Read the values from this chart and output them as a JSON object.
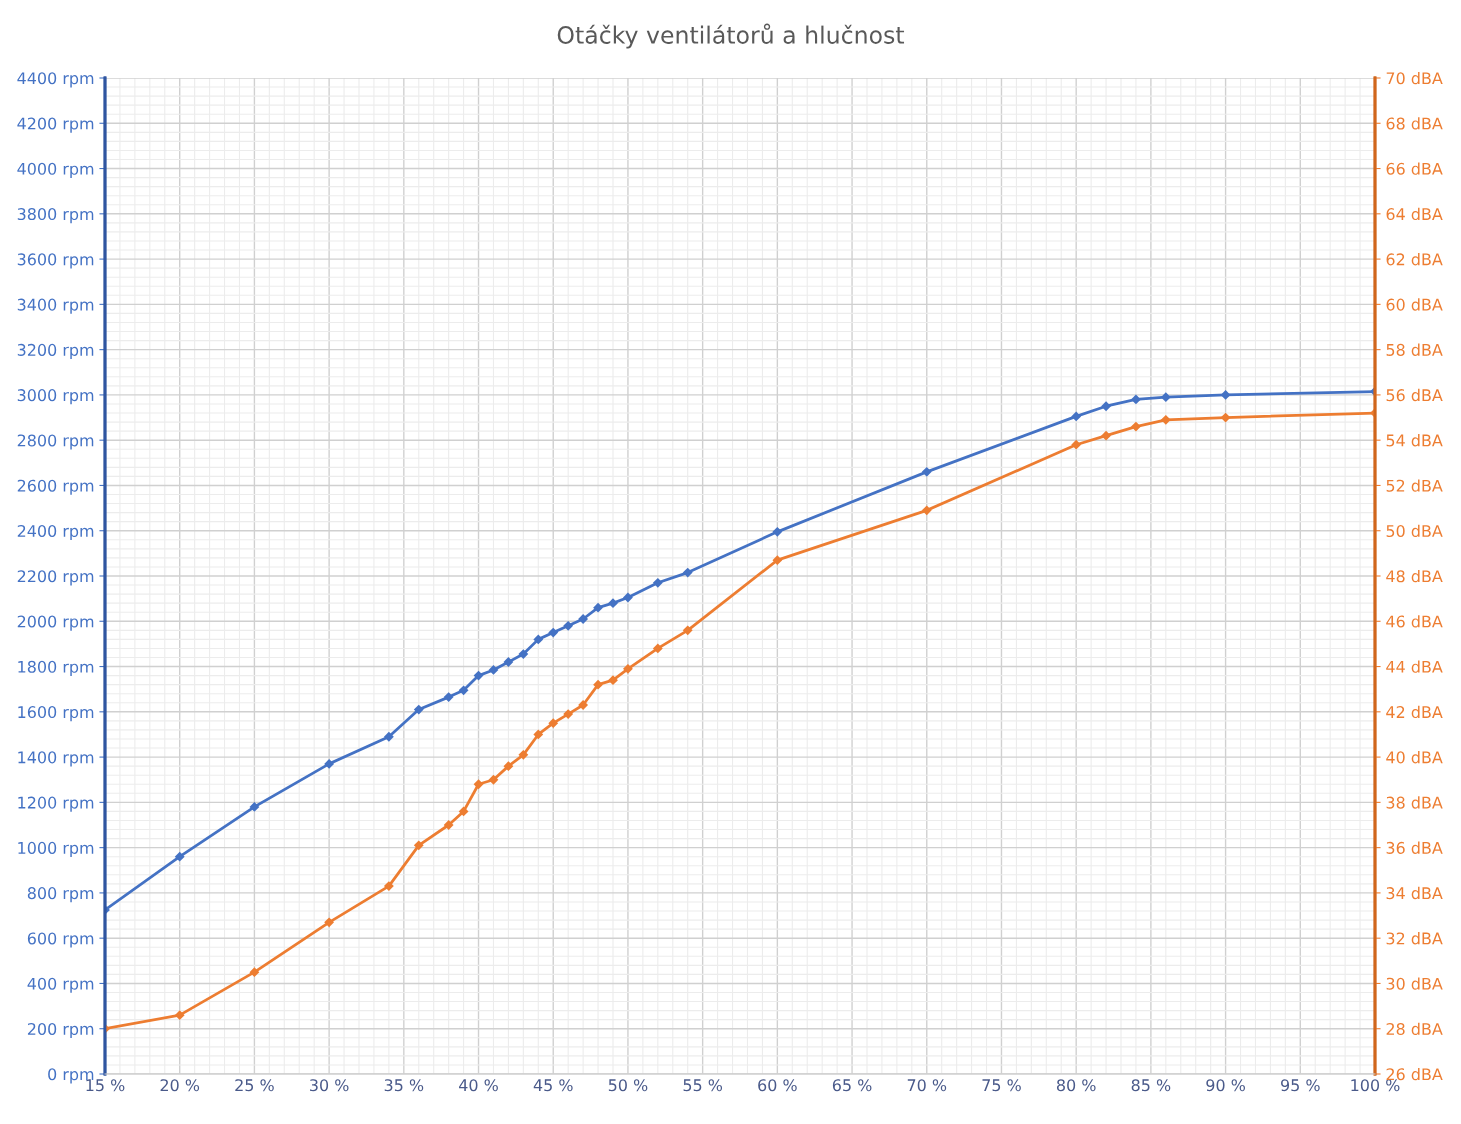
{
  "chart_data": {
    "type": "line",
    "title": "Otáčky ventilátorů a hlučnost",
    "marker": "diamond",
    "grid": true,
    "legend": false,
    "x": [
      15,
      20,
      25,
      30,
      34,
      36,
      38,
      39,
      40,
      41,
      42,
      43,
      44,
      45,
      46,
      47,
      48,
      49,
      50,
      52,
      54,
      60,
      70,
      80,
      82,
      84,
      86,
      90,
      100
    ],
    "xlim": [
      15,
      100
    ],
    "xticks": [
      {
        "value": 15,
        "label": "15 %"
      },
      {
        "value": 20,
        "label": "20 %"
      },
      {
        "value": 25,
        "label": "25 %"
      },
      {
        "value": 30,
        "label": "30 %"
      },
      {
        "value": 35,
        "label": "35 %"
      },
      {
        "value": 40,
        "label": "40 %"
      },
      {
        "value": 45,
        "label": "45 %"
      },
      {
        "value": 50,
        "label": "50 %"
      },
      {
        "value": 55,
        "label": "55 %"
      },
      {
        "value": 60,
        "label": "60 %"
      },
      {
        "value": 65,
        "label": "65 %"
      },
      {
        "value": 70,
        "label": "70 %"
      },
      {
        "value": 75,
        "label": "75 %"
      },
      {
        "value": 80,
        "label": "80 %"
      },
      {
        "value": 85,
        "label": "85 %"
      },
      {
        "value": 90,
        "label": "90 %"
      },
      {
        "value": 95,
        "label": "95 %"
      },
      {
        "value": 100,
        "label": "100 %"
      }
    ],
    "ylim": [
      0,
      4400
    ],
    "yticks": [
      {
        "value": 0,
        "label": "0 rpm"
      },
      {
        "value": 200,
        "label": "200 rpm"
      },
      {
        "value": 400,
        "label": "400 rpm"
      },
      {
        "value": 600,
        "label": "600 rpm"
      },
      {
        "value": 800,
        "label": "800 rpm"
      },
      {
        "value": 1000,
        "label": "1000 rpm"
      },
      {
        "value": 1200,
        "label": "1200 rpm"
      },
      {
        "value": 1400,
        "label": "1400 rpm"
      },
      {
        "value": 1600,
        "label": "1600 rpm"
      },
      {
        "value": 1800,
        "label": "1800 rpm"
      },
      {
        "value": 2000,
        "label": "2000 rpm"
      },
      {
        "value": 2200,
        "label": "2200 rpm"
      },
      {
        "value": 2400,
        "label": "2400 rpm"
      },
      {
        "value": 2600,
        "label": "2600 rpm"
      },
      {
        "value": 2800,
        "label": "2800 rpm"
      },
      {
        "value": 3000,
        "label": "3000 rpm"
      },
      {
        "value": 3200,
        "label": "3200 rpm"
      },
      {
        "value": 3400,
        "label": "3400 rpm"
      },
      {
        "value": 3600,
        "label": "3600 rpm"
      },
      {
        "value": 3800,
        "label": "3800 rpm"
      },
      {
        "value": 4000,
        "label": "4000 rpm"
      },
      {
        "value": 4200,
        "label": "4200 rpm"
      },
      {
        "value": 4400,
        "label": "4400 rpm"
      }
    ],
    "y2lim": [
      26,
      70
    ],
    "y2ticks": [
      {
        "value": 26,
        "label": "26 dBA"
      },
      {
        "value": 28,
        "label": "28 dBA"
      },
      {
        "value": 30,
        "label": "30 dBA"
      },
      {
        "value": 32,
        "label": "32 dBA"
      },
      {
        "value": 34,
        "label": "34 dBA"
      },
      {
        "value": 36,
        "label": "36 dBA"
      },
      {
        "value": 38,
        "label": "38 dBA"
      },
      {
        "value": 40,
        "label": "40 dBA"
      },
      {
        "value": 42,
        "label": "42 dBA"
      },
      {
        "value": 44,
        "label": "44 dBA"
      },
      {
        "value": 46,
        "label": "46 dBA"
      },
      {
        "value": 48,
        "label": "48 dBA"
      },
      {
        "value": 50,
        "label": "50 dBA"
      },
      {
        "value": 52,
        "label": "52 dBA"
      },
      {
        "value": 54,
        "label": "54 dBA"
      },
      {
        "value": 56,
        "label": "56 dBA"
      },
      {
        "value": 58,
        "label": "58 dBA"
      },
      {
        "value": 60,
        "label": "60 dBA"
      },
      {
        "value": 62,
        "label": "62 dBA"
      },
      {
        "value": 64,
        "label": "64 dBA"
      },
      {
        "value": 66,
        "label": "66 dBA"
      },
      {
        "value": 68,
        "label": "68 dBA"
      },
      {
        "value": 70,
        "label": "70 dBA"
      }
    ],
    "series": [
      {
        "color": "#4472c4",
        "values": [
          725,
          960,
          1180,
          1370,
          1490,
          1610,
          1665,
          1695,
          1760,
          1785,
          1820,
          1855,
          1920,
          1950,
          1980,
          2010,
          2060,
          2080,
          2105,
          2170,
          2215,
          2395,
          2660,
          2905,
          2950,
          2980,
          2990,
          3000,
          3015
        ]
      },
      {
        "color": "#ed7d31",
        "axis": "y2",
        "values": [
          28,
          28.6,
          30.5,
          32.7,
          34.3,
          36.1,
          37.0,
          37.6,
          38.8,
          39.0,
          39.6,
          40.1,
          41.0,
          41.5,
          41.9,
          42.3,
          43.2,
          43.4,
          43.9,
          44.8,
          45.6,
          48.7,
          50.9,
          53.8,
          54.2,
          54.6,
          54.9,
          55.0,
          55.2
        ]
      }
    ]
  }
}
